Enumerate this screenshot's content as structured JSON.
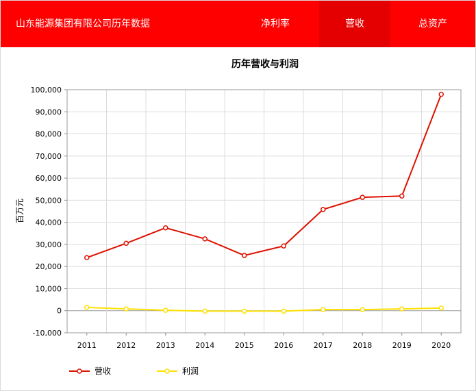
{
  "header": {
    "title": "山东能源集团有限公司历年数据",
    "tabs": [
      {
        "label": "净利率",
        "active": false
      },
      {
        "label": "营收",
        "active": true
      },
      {
        "label": "总资产",
        "active": false
      }
    ],
    "background_color": "#ff0000",
    "active_tab_color": "#e40000"
  },
  "chart_data": {
    "type": "line",
    "title": "历年营收与利润",
    "xlabel": "",
    "ylabel": "百万元",
    "categories": [
      "2011",
      "2012",
      "2013",
      "2014",
      "2015",
      "2016",
      "2017",
      "2018",
      "2019",
      "2020"
    ],
    "ylim": [
      -10000,
      100000
    ],
    "yticks": [
      -10000,
      0,
      10000,
      20000,
      30000,
      40000,
      50000,
      60000,
      70000,
      80000,
      90000,
      100000
    ],
    "ytick_labels": [
      "-10,000",
      "0",
      "10,000",
      "20,000",
      "30,000",
      "40,000",
      "50,000",
      "60,000",
      "70,000",
      "80,000",
      "90,000",
      "100,000"
    ],
    "grid": true,
    "legend_position": "bottom-left",
    "series": [
      {
        "name": "营收",
        "color": "#dd1100",
        "values": [
          24000,
          30500,
          37500,
          32500,
          25000,
          29300,
          45800,
          51300,
          51900,
          97900
        ]
      },
      {
        "name": "利润",
        "color": "#ffe000",
        "values": [
          1500,
          800,
          200,
          -200,
          -200,
          -200,
          500,
          500,
          800,
          1200
        ]
      }
    ]
  }
}
